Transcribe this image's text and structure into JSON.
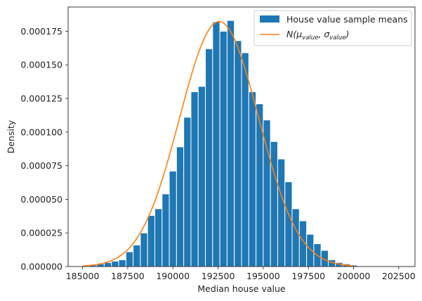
{
  "chart_data": {
    "type": "bar",
    "xlabel": "Median house value",
    "ylabel": "Density",
    "xlim": [
      184200,
      203400
    ],
    "ylim": [
      0,
      0.000193
    ],
    "xticks": [
      185000,
      187500,
      190000,
      192500,
      195000,
      197500,
      200000,
      202500
    ],
    "xtick_labels": [
      "185000",
      "187500",
      "190000",
      "192500",
      "195000",
      "197500",
      "200000",
      "202500"
    ],
    "yticks": [
      0,
      2.5e-05,
      5e-05,
      7.5e-05,
      0.0001,
      0.000125,
      0.00015,
      0.000175
    ],
    "ytick_labels": [
      "0.000000",
      "0.000025",
      "0.000050",
      "0.000075",
      "0.000100",
      "0.000125",
      "0.000150",
      "0.000175"
    ],
    "grid": false,
    "legend_position": "top-right",
    "series": [
      {
        "name": "House value sample means",
        "kind": "histogram",
        "color": "#1f77b4",
        "bin_edges": [
          185000,
          185400,
          185800,
          186200,
          186600,
          187000,
          187400,
          187800,
          188200,
          188600,
          189000,
          189400,
          189800,
          190200,
          190600,
          191000,
          191400,
          191800,
          192200,
          192600,
          193000,
          193400,
          193800,
          194200,
          194600,
          195000,
          195400,
          195800,
          196200,
          196600,
          197000,
          197400,
          197800,
          198200,
          198600,
          199000,
          199400,
          199800,
          200200
        ],
        "values": [
          5e-07,
          1e-06,
          2e-06,
          3e-06,
          4e-06,
          5e-06,
          1.1e-05,
          1.6e-05,
          2.5e-05,
          3.8e-05,
          4.3e-05,
          5.4e-05,
          7.1e-05,
          8.9e-05,
          0.000111,
          0.00013,
          0.000134,
          0.000162,
          0.000182,
          0.000175,
          0.000183,
          0.000168,
          0.000159,
          0.00013,
          0.000121,
          0.000109,
          9.3e-05,
          8e-05,
          6.3e-05,
          4.3e-05,
          3.4e-05,
          2.4e-05,
          1.7e-05,
          1.2e-05,
          5e-06,
          3e-06,
          2e-06,
          1e-06
        ]
      },
      {
        "name": "N(μ_value, σ_value)",
        "legend_main": "N(μ",
        "legend_sub1": "value",
        "legend_mid": ", σ",
        "legend_sub2": "value",
        "legend_end": ")",
        "kind": "normal_pdf",
        "color": "#ff7f0e",
        "mean": 192560,
        "std": 2190,
        "x_range": [
          185000,
          200000
        ]
      }
    ]
  }
}
